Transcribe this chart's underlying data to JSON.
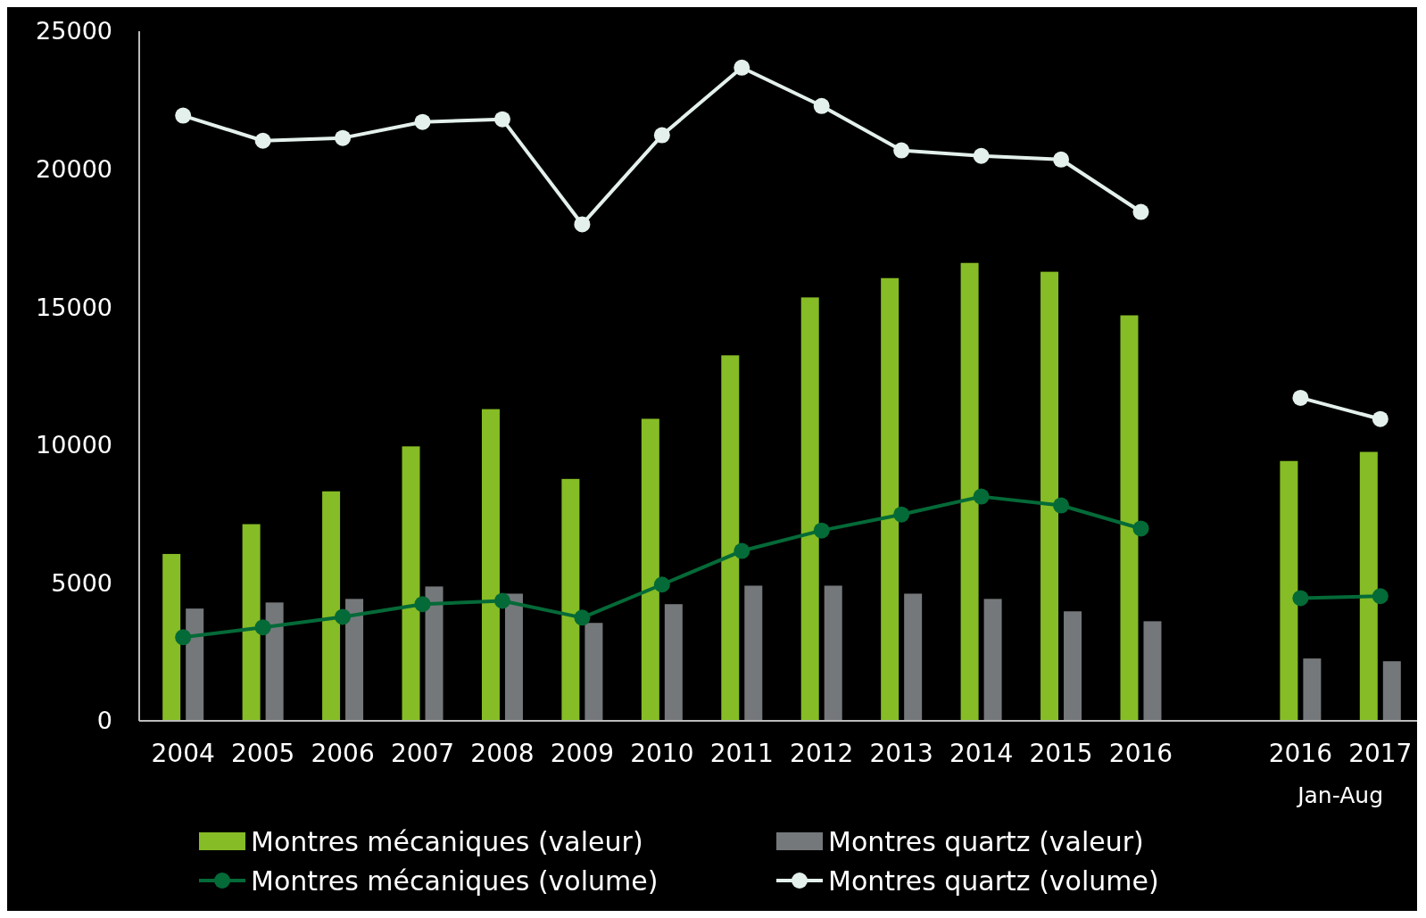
{
  "chart_data": {
    "type": "bar",
    "categories": [
      "2004",
      "2005",
      "2006",
      "2007",
      "2008",
      "2009",
      "2010",
      "2011",
      "2012",
      "2013",
      "2014",
      "2015",
      "2016",
      null,
      "2016",
      "2017"
    ],
    "series": [
      {
        "name": "Montres mécaniques (valeur)",
        "color": "#86bc25",
        "values": [
          6050,
          7130,
          8320,
          9950,
          11300,
          8770,
          10950,
          13250,
          15350,
          16050,
          16600,
          16280,
          14700,
          null,
          9420,
          9750
        ]
      },
      {
        "name": "Montres quartz (valeur)",
        "color": "#75787b",
        "values": [
          4070,
          4290,
          4420,
          4870,
          4610,
          3550,
          4230,
          4900,
          4900,
          4610,
          4420,
          3970,
          3610,
          null,
          2260,
          2160
        ]
      },
      {
        "name": "Montres mécaniques (volume)",
        "type": "line",
        "color": "#046a38",
        "values": [
          3030,
          3390,
          3770,
          4230,
          4350,
          3740,
          4940,
          6160,
          6900,
          7480,
          8130,
          7810,
          6970,
          null,
          4450,
          4520
        ]
      },
      {
        "name": "Montres quartz (volume)",
        "type": "line",
        "color": "#e3f0ec",
        "values": [
          21940,
          21030,
          21130,
          21710,
          21810,
          18000,
          21230,
          23680,
          22290,
          20680,
          20480,
          20350,
          18450,
          null,
          11710,
          10940
        ]
      }
    ],
    "ylim": [
      0,
      25000
    ],
    "yticks": [
      0,
      5000,
      10000,
      15000,
      20000,
      25000
    ],
    "marker": "circle",
    "legend": "bottom",
    "annotations": [
      "Jan-Aug"
    ]
  }
}
